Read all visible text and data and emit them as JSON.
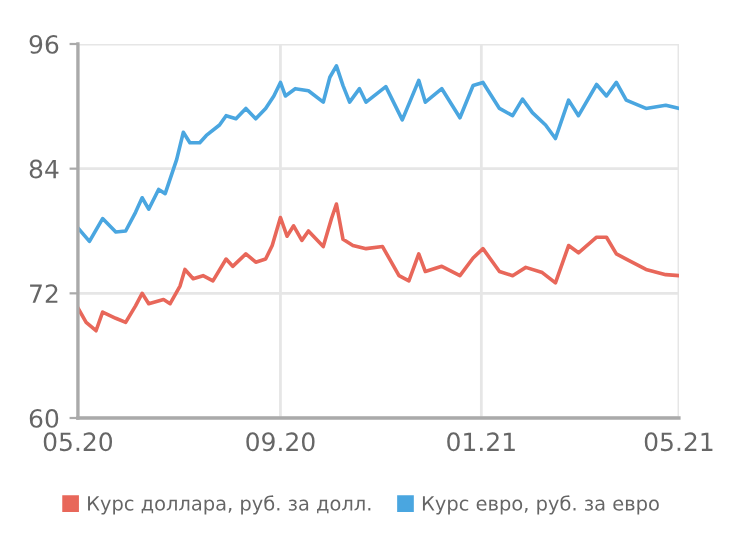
{
  "chart_data": {
    "type": "line",
    "xlim": [
      "2020-05-01",
      "2021-05-01"
    ],
    "xticks": [
      {
        "value": "2020-05-01",
        "label": "05.20"
      },
      {
        "value": "2020-09-01",
        "label": "09.20"
      },
      {
        "value": "2021-01-01",
        "label": "01.21"
      },
      {
        "value": "2021-05-01",
        "label": "05.21"
      }
    ],
    "ylim": [
      60,
      96
    ],
    "yticks": [
      60,
      72,
      84,
      96
    ],
    "grid": true,
    "legend": "bottom",
    "marker": "none",
    "line_style": "solid",
    "series": [
      {
        "name": "Курс доллара, руб. за долл.",
        "color": "#e8675a",
        "x": [
          "2020-05-01",
          "2020-05-06",
          "2020-05-12",
          "2020-05-16",
          "2020-05-24",
          "2020-05-30",
          "2020-06-05",
          "2020-06-09",
          "2020-06-13",
          "2020-06-22",
          "2020-06-26",
          "2020-07-02",
          "2020-07-05",
          "2020-07-10",
          "2020-07-16",
          "2020-07-22",
          "2020-07-30",
          "2020-08-03",
          "2020-08-11",
          "2020-08-17",
          "2020-08-23",
          "2020-08-27",
          "2020-09-01",
          "2020-09-05",
          "2020-09-09",
          "2020-09-14",
          "2020-09-18",
          "2020-09-27",
          "2020-10-02",
          "2020-10-05",
          "2020-10-09",
          "2020-10-15",
          "2020-10-23",
          "2020-11-02",
          "2020-11-12",
          "2020-11-18",
          "2020-11-24",
          "2020-11-28",
          "2020-12-08",
          "2020-12-19",
          "2020-12-27",
          "2021-01-02",
          "2021-01-12",
          "2021-01-20",
          "2021-01-28",
          "2021-02-07",
          "2021-02-15",
          "2021-02-23",
          "2021-03-01",
          "2021-03-12",
          "2021-03-18",
          "2021-03-24",
          "2021-03-30",
          "2021-04-11",
          "2021-04-23",
          "2021-05-01"
        ],
        "values": [
          70.6,
          69.2,
          68.4,
          70.2,
          69.6,
          69.2,
          70.8,
          72.0,
          71.0,
          71.4,
          71.0,
          72.7,
          74.3,
          73.4,
          73.7,
          73.2,
          75.3,
          74.6,
          75.8,
          75.0,
          75.3,
          76.6,
          79.3,
          77.5,
          78.5,
          77.1,
          78.0,
          76.5,
          79.2,
          80.6,
          77.2,
          76.6,
          76.3,
          76.5,
          73.7,
          73.2,
          75.8,
          74.1,
          74.6,
          73.7,
          75.4,
          76.3,
          74.1,
          73.7,
          74.5,
          74.0,
          73.0,
          76.6,
          75.9,
          77.4,
          77.4,
          75.8,
          75.3,
          74.3,
          73.8,
          73.7
        ]
      },
      {
        "name": "Курс евро, руб. за евро",
        "color": "#4aa6e0",
        "x": [
          "2020-05-01",
          "2020-05-08",
          "2020-05-16",
          "2020-05-24",
          "2020-05-30",
          "2020-06-05",
          "2020-06-09",
          "2020-06-13",
          "2020-06-19",
          "2020-06-23",
          "2020-06-30",
          "2020-07-04",
          "2020-07-08",
          "2020-07-14",
          "2020-07-18",
          "2020-07-26",
          "2020-07-30",
          "2020-08-05",
          "2020-08-11",
          "2020-08-17",
          "2020-08-23",
          "2020-08-28",
          "2020-09-01",
          "2020-09-04",
          "2020-09-10",
          "2020-09-18",
          "2020-09-27",
          "2020-10-01",
          "2020-10-05",
          "2020-10-09",
          "2020-10-13",
          "2020-10-19",
          "2020-10-23",
          "2020-11-04",
          "2020-11-14",
          "2020-11-24",
          "2020-11-28",
          "2020-12-08",
          "2020-12-19",
          "2020-12-27",
          "2021-01-02",
          "2021-01-12",
          "2021-01-20",
          "2021-01-26",
          "2021-02-01",
          "2021-02-09",
          "2021-02-15",
          "2021-02-23",
          "2021-03-01",
          "2021-03-12",
          "2021-03-18",
          "2021-03-24",
          "2021-03-30",
          "2021-04-11",
          "2021-04-23",
          "2021-05-01"
        ],
        "values": [
          78.3,
          77.0,
          79.2,
          77.9,
          78.0,
          79.8,
          81.2,
          80.1,
          82.0,
          81.6,
          84.9,
          87.5,
          86.5,
          86.5,
          87.2,
          88.2,
          89.1,
          88.8,
          89.8,
          88.8,
          89.8,
          91.0,
          92.3,
          91.0,
          91.7,
          91.5,
          90.4,
          92.8,
          93.9,
          92.0,
          90.4,
          91.7,
          90.4,
          91.9,
          88.7,
          92.5,
          90.4,
          91.7,
          88.9,
          92.0,
          92.3,
          89.8,
          89.1,
          90.7,
          89.4,
          88.2,
          86.9,
          90.6,
          89.1,
          92.1,
          91.0,
          92.3,
          90.6,
          89.8,
          90.1,
          89.8
        ]
      }
    ]
  }
}
